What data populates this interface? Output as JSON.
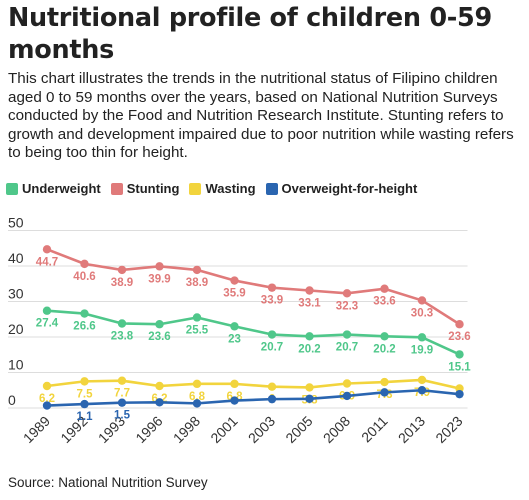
{
  "title": "Nutritional profile of children 0-59 months",
  "subtitle": "This chart illustrates the trends in the nutritional status of Filipino children aged 0 to 59 months over the years, based on National Nutrition Surveys conducted by the Food and Nutrition Research Institute. Stunting refers to growth and development impaired due to poor nutrition while wasting refers to being too thin for height.",
  "source": "Source: National Nutrition Survey",
  "chart_data": {
    "type": "line",
    "categories": [
      "1989",
      "1992",
      "1993",
      "1996",
      "1998",
      "2001",
      "2003",
      "2005",
      "2008",
      "2011",
      "2013",
      "2023"
    ],
    "ylim": [
      0,
      50
    ],
    "yticks": [
      0,
      10,
      20,
      30,
      40,
      50
    ],
    "grid": true,
    "legend_position": "top-left",
    "series": [
      {
        "name": "Underweight",
        "color": "#4fc78a",
        "values": [
          27.4,
          26.6,
          23.8,
          23.6,
          25.5,
          23,
          20.7,
          20.2,
          20.7,
          20.2,
          19.9,
          15.1
        ],
        "labels": [
          "27.4",
          "26.6",
          "23.8",
          "23.6",
          "25.5",
          "23",
          "20.7",
          "20.2",
          "20.7",
          "20.2",
          "19.9",
          "15.1"
        ]
      },
      {
        "name": "Stunting",
        "color": "#e07a7a",
        "values": [
          44.7,
          40.6,
          38.9,
          39.9,
          38.9,
          35.9,
          33.9,
          33.1,
          32.3,
          33.6,
          30.3,
          23.6
        ],
        "labels": [
          "44.7",
          "40.6",
          "38.9",
          "39.9",
          "38.9",
          "35.9",
          "33.9",
          "33.1",
          "32.3",
          "33.6",
          "30.3",
          "23.6"
        ]
      },
      {
        "name": "Wasting",
        "color": "#f2d43d",
        "values": [
          6.2,
          7.5,
          7.7,
          6.2,
          6.8,
          6.8,
          6,
          5.8,
          6.9,
          7.3,
          7.9,
          5.5
        ],
        "labels": [
          "6.2",
          "7.5",
          "7.7",
          "6.2",
          "6.8",
          "6.8",
          "6",
          "5.8",
          "6.9",
          "7.3",
          "7.9",
          ""
        ]
      },
      {
        "name": "Overweight-for-height",
        "color": "#2a65b0",
        "values": [
          0.7,
          1.1,
          1.5,
          1.6,
          1.3,
          2.1,
          2.5,
          2.6,
          3.4,
          4.4,
          5,
          3.9
        ],
        "labels": [
          "",
          "1.1",
          "1.5",
          "",
          "",
          "",
          "",
          "",
          "",
          "",
          "",
          ""
        ]
      }
    ]
  }
}
